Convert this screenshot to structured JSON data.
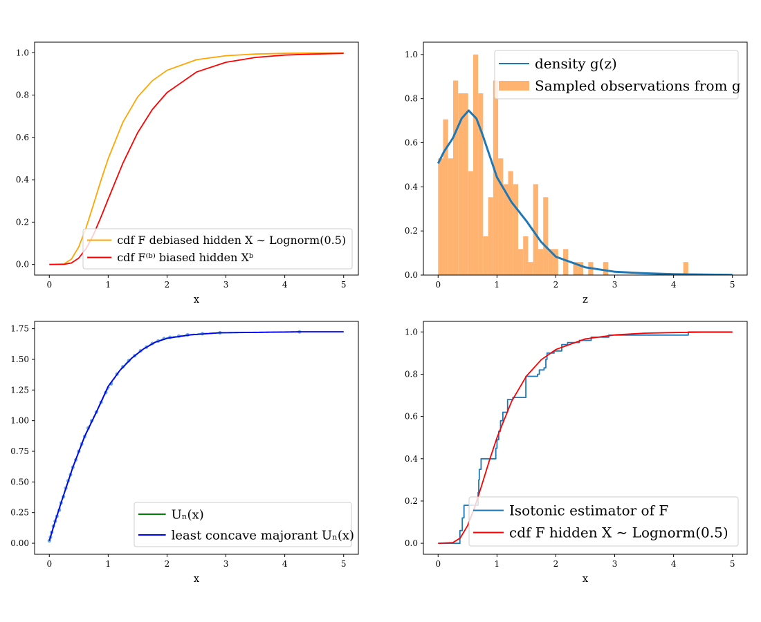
{
  "chart_data": [
    {
      "type": "line",
      "xlabel": "x",
      "ylabel": "",
      "xlim": [
        -0.25,
        5.25
      ],
      "ylim": [
        -0.05,
        1.05
      ],
      "xticks": [
        0,
        1,
        2,
        3,
        4,
        5
      ],
      "yticks": [
        0.0,
        0.2,
        0.4,
        0.6,
        0.8,
        1.0
      ],
      "ytick_labels": [
        "0.0",
        "0.2",
        "0.4",
        "0.6",
        "0.8",
        "1.0"
      ],
      "grid": false,
      "legend_position": "lower-right",
      "series": [
        {
          "name": "cdf F debiased hidden X ∼ Lognorm(0.5)",
          "color": "#ffa500",
          "x": [
            0,
            0.25,
            0.375,
            0.5,
            0.625,
            0.75,
            0.875,
            1,
            1.25,
            1.5,
            1.75,
            2,
            2.5,
            3,
            3.5,
            4,
            4.5,
            5
          ],
          "y": [
            0,
            0.003,
            0.025,
            0.083,
            0.174,
            0.283,
            0.395,
            0.5,
            0.672,
            0.791,
            0.868,
            0.917,
            0.967,
            0.986,
            0.994,
            0.997,
            0.999,
            0.999
          ]
        },
        {
          "name": "cdf F⁽ᵇ⁾ biased hidden Xᵇ",
          "color": "#ff0000",
          "x": [
            0,
            0.25,
            0.375,
            0.5,
            0.625,
            0.75,
            0.875,
            1,
            1.25,
            1.5,
            1.75,
            2,
            2.5,
            3,
            3.5,
            4,
            4.5,
            5
          ],
          "y": [
            0,
            0.0005,
            0.007,
            0.03,
            0.075,
            0.141,
            0.222,
            0.309,
            0.478,
            0.622,
            0.732,
            0.812,
            0.909,
            0.955,
            0.978,
            0.989,
            0.994,
            0.997
          ]
        }
      ]
    },
    {
      "type": "bar",
      "xlabel": "z",
      "ylabel": "",
      "xlim": [
        -0.25,
        5.25
      ],
      "ylim": [
        0,
        1.056
      ],
      "xticks": [
        0,
        1,
        2,
        3,
        4,
        5
      ],
      "yticks": [
        0.0,
        0.2,
        0.4,
        0.6,
        0.8,
        1.0
      ],
      "ytick_labels": [
        "0.0",
        "0.2",
        "0.4",
        "0.6",
        "0.8",
        "1.0"
      ],
      "grid": false,
      "legend_position": "upper-right",
      "histogram": {
        "name": "Sampled observations from g",
        "color": "#ffb370",
        "bin_start": 0,
        "bin_width": 0.085,
        "values": [
          0.529,
          0.706,
          0.529,
          0.882,
          0.824,
          0.824,
          0.471,
          1.0,
          0.824,
          0.176,
          0.353,
          0.882,
          0.529,
          0.412,
          0.471,
          0.412,
          0.118,
          0.176,
          0.059,
          0.412,
          0.118,
          0.353,
          0.118,
          0.118,
          0,
          0.118,
          0,
          0.059,
          0.059,
          0,
          0.059,
          0,
          0,
          0.059,
          0,
          0,
          0,
          0,
          0,
          0,
          0,
          0,
          0,
          0,
          0,
          0,
          0,
          0,
          0,
          0.059
        ]
      },
      "series": [
        {
          "name": "density g(z)",
          "color": "#1f77b4",
          "x": [
            0,
            0.1,
            0.25,
            0.4,
            0.52,
            0.65,
            0.75,
            1,
            1.25,
            1.5,
            1.75,
            2,
            2.5,
            3,
            3.5,
            4,
            5
          ],
          "y": [
            0.506,
            0.56,
            0.62,
            0.71,
            0.746,
            0.71,
            0.64,
            0.443,
            0.33,
            0.245,
            0.15,
            0.083,
            0.035,
            0.015,
            0.008,
            0.004,
            0.001
          ]
        }
      ]
    },
    {
      "type": "line",
      "xlabel": "x",
      "ylabel": "",
      "xlim": [
        -0.25,
        5.25
      ],
      "ylim": [
        -0.09,
        1.81
      ],
      "xticks": [
        0,
        1,
        2,
        3,
        4,
        5
      ],
      "yticks": [
        0,
        0.25,
        0.5,
        0.75,
        1.0,
        1.25,
        1.5,
        1.75
      ],
      "ytick_labels": [
        "0.00",
        "0.25",
        "0.50",
        "0.75",
        "1.00",
        "1.25",
        "1.50",
        "1.75"
      ],
      "grid": false,
      "legend_position": "lower-right",
      "points": {
        "color": "#5a9fd4",
        "xy": [
          [
            0,
            0.02
          ],
          [
            0.02,
            0.05
          ],
          [
            0.04,
            0.09
          ],
          [
            0.07,
            0.14
          ],
          [
            0.1,
            0.18
          ],
          [
            0.13,
            0.22
          ],
          [
            0.17,
            0.27
          ],
          [
            0.2,
            0.33
          ],
          [
            0.24,
            0.38
          ],
          [
            0.28,
            0.45
          ],
          [
            0.32,
            0.51
          ],
          [
            0.36,
            0.56
          ],
          [
            0.4,
            0.62
          ],
          [
            0.45,
            0.68
          ],
          [
            0.5,
            0.75
          ],
          [
            0.55,
            0.81
          ],
          [
            0.6,
            0.87
          ],
          [
            0.66,
            0.94
          ],
          [
            0.72,
            1.0
          ],
          [
            0.8,
            1.07
          ],
          [
            0.88,
            1.15
          ],
          [
            0.96,
            1.23
          ],
          [
            1.05,
            1.3
          ],
          [
            1.15,
            1.38
          ],
          [
            1.25,
            1.44
          ],
          [
            1.35,
            1.49
          ],
          [
            1.45,
            1.53
          ],
          [
            1.55,
            1.57
          ],
          [
            1.65,
            1.6
          ],
          [
            1.75,
            1.63
          ],
          [
            1.85,
            1.65
          ],
          [
            1.95,
            1.67
          ],
          [
            2.05,
            1.68
          ],
          [
            2.2,
            1.69
          ],
          [
            2.35,
            1.7
          ],
          [
            2.6,
            1.71
          ],
          [
            2.9,
            1.717
          ],
          [
            4.25,
            1.725
          ]
        ]
      },
      "series": [
        {
          "name": "Uₙ(x)",
          "color": "#008000",
          "x": [
            0,
            0.1,
            0.2,
            0.4,
            0.6,
            0.8,
            1.0,
            1.2,
            1.4,
            1.6,
            1.8,
            2.0,
            2.4,
            2.9,
            4.25,
            5
          ],
          "y": [
            0.02,
            0.18,
            0.33,
            0.62,
            0.87,
            1.07,
            1.28,
            1.41,
            1.51,
            1.585,
            1.64,
            1.672,
            1.7,
            1.717,
            1.725,
            1.725
          ]
        },
        {
          "name": "least concave majorant Uₙ(x)",
          "color": "#0000ff",
          "x": [
            0,
            0.1,
            0.2,
            0.4,
            0.6,
            0.8,
            1.0,
            1.2,
            1.4,
            1.6,
            1.8,
            2.0,
            2.4,
            2.9,
            4.25,
            5
          ],
          "y": [
            0.02,
            0.18,
            0.33,
            0.62,
            0.87,
            1.07,
            1.28,
            1.41,
            1.51,
            1.585,
            1.64,
            1.672,
            1.7,
            1.717,
            1.725,
            1.725
          ]
        }
      ]
    },
    {
      "type": "line",
      "xlabel": "x",
      "ylabel": "",
      "xlim": [
        -0.25,
        5.25
      ],
      "ylim": [
        -0.052,
        1.05
      ],
      "xticks": [
        0,
        1,
        2,
        3,
        4,
        5
      ],
      "yticks": [
        0.0,
        0.2,
        0.4,
        0.6,
        0.8,
        1.0
      ],
      "ytick_labels": [
        "0.0",
        "0.2",
        "0.4",
        "0.6",
        "0.8",
        "1.0"
      ],
      "grid": false,
      "legend_position": "lower-right",
      "series": [
        {
          "name": "Isotonic estimator of F",
          "color": "#1f77b4",
          "step": true,
          "x": [
            0,
            0.37,
            0.41,
            0.44,
            0.68,
            0.69,
            0.7,
            0.73,
            0.98,
            1.0,
            1.03,
            1.06,
            1.1,
            1.18,
            1.27,
            1.49,
            1.69,
            1.72,
            1.8,
            1.83,
            1.85,
            1.97,
            2.1,
            2.2,
            2.4,
            2.6,
            2.9,
            4.25,
            5
          ],
          "y": [
            0,
            0.06,
            0.12,
            0.18,
            0.24,
            0.3,
            0.35,
            0.4,
            0.45,
            0.49,
            0.53,
            0.58,
            0.62,
            0.68,
            0.69,
            0.79,
            0.8,
            0.82,
            0.83,
            0.87,
            0.9,
            0.91,
            0.94,
            0.95,
            0.96,
            0.975,
            0.985,
            1.0,
            1.0
          ]
        },
        {
          "name": "cdf F hidden X ∼ Lognorm(0.5)",
          "color": "#ff0000",
          "x": [
            0,
            0.25,
            0.375,
            0.5,
            0.625,
            0.75,
            0.875,
            1,
            1.25,
            1.5,
            1.75,
            2,
            2.5,
            3,
            3.5,
            4,
            4.5,
            5
          ],
          "y": [
            0,
            0.003,
            0.025,
            0.083,
            0.174,
            0.283,
            0.395,
            0.5,
            0.672,
            0.791,
            0.868,
            0.917,
            0.967,
            0.986,
            0.994,
            0.997,
            0.999,
            0.999
          ]
        }
      ]
    }
  ]
}
